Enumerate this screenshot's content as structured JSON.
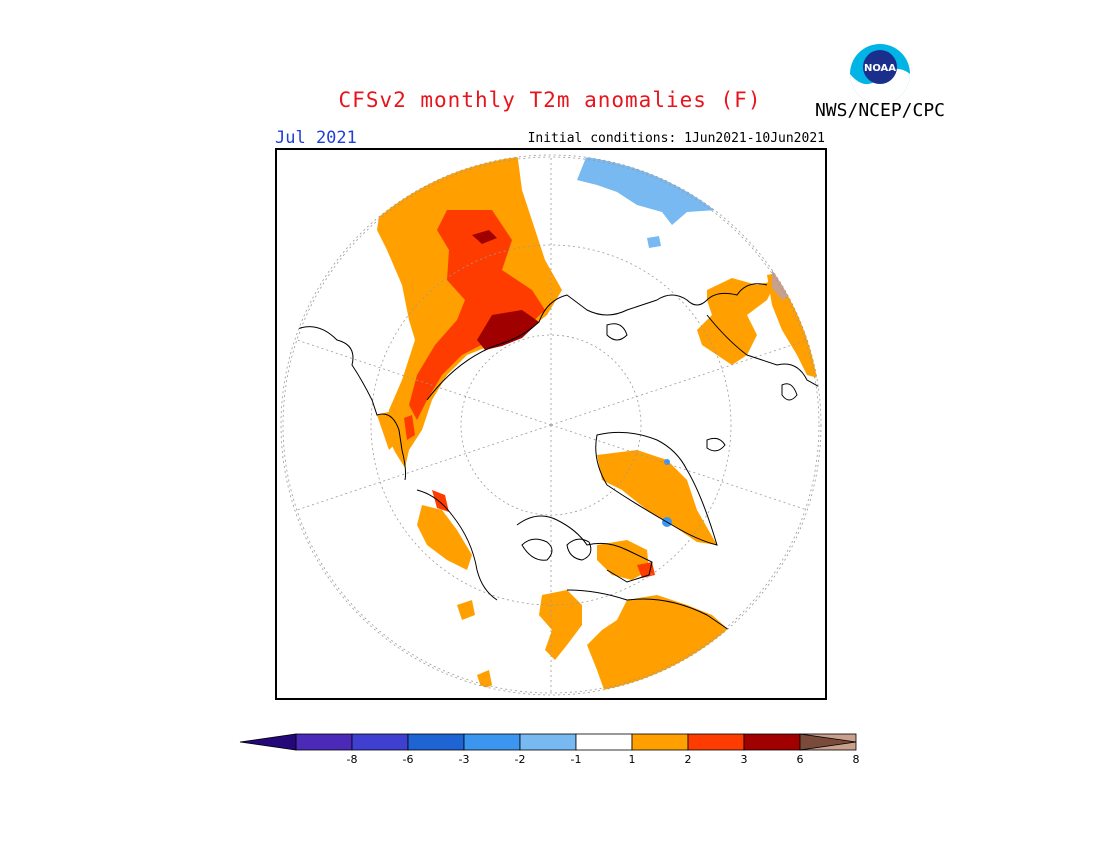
{
  "title": "CFSv2 monthly T2m anomalies (F)",
  "agency": "NWS/NCEP/CPC",
  "logo": {
    "icon": "noaa-logo-icon",
    "text": "NOAA"
  },
  "valid_month": "Jul 2021",
  "initial_conditions": "Initial conditions: 1Jun2021-10Jun2021",
  "colors": {
    "ocean_land": "#ffffff",
    "coast": "#000000",
    "warm1": "#ffa000",
    "warm2": "#ff3c00",
    "warm3": "#a00000",
    "cool1": "#78b9f2",
    "cool2": "#3c96f0"
  },
  "colorbar": {
    "labels": [
      "-8",
      "-6",
      "-3",
      "-2",
      "-1",
      "1",
      "2",
      "3",
      "6",
      "8"
    ],
    "bins": [
      {
        "color": "#4b2ab8"
      },
      {
        "color": "#3f3fd0"
      },
      {
        "color": "#1e64d2"
      },
      {
        "color": "#3c96f0"
      },
      {
        "color": "#78b9f2"
      },
      {
        "color": "#ffffff"
      },
      {
        "color": "#ffa000"
      },
      {
        "color": "#ff3c00"
      },
      {
        "color": "#a00000"
      },
      {
        "color": "#c8a08c"
      }
    ],
    "low_end_color": "#24087a",
    "high_end_color": "#7a4a3a"
  }
}
